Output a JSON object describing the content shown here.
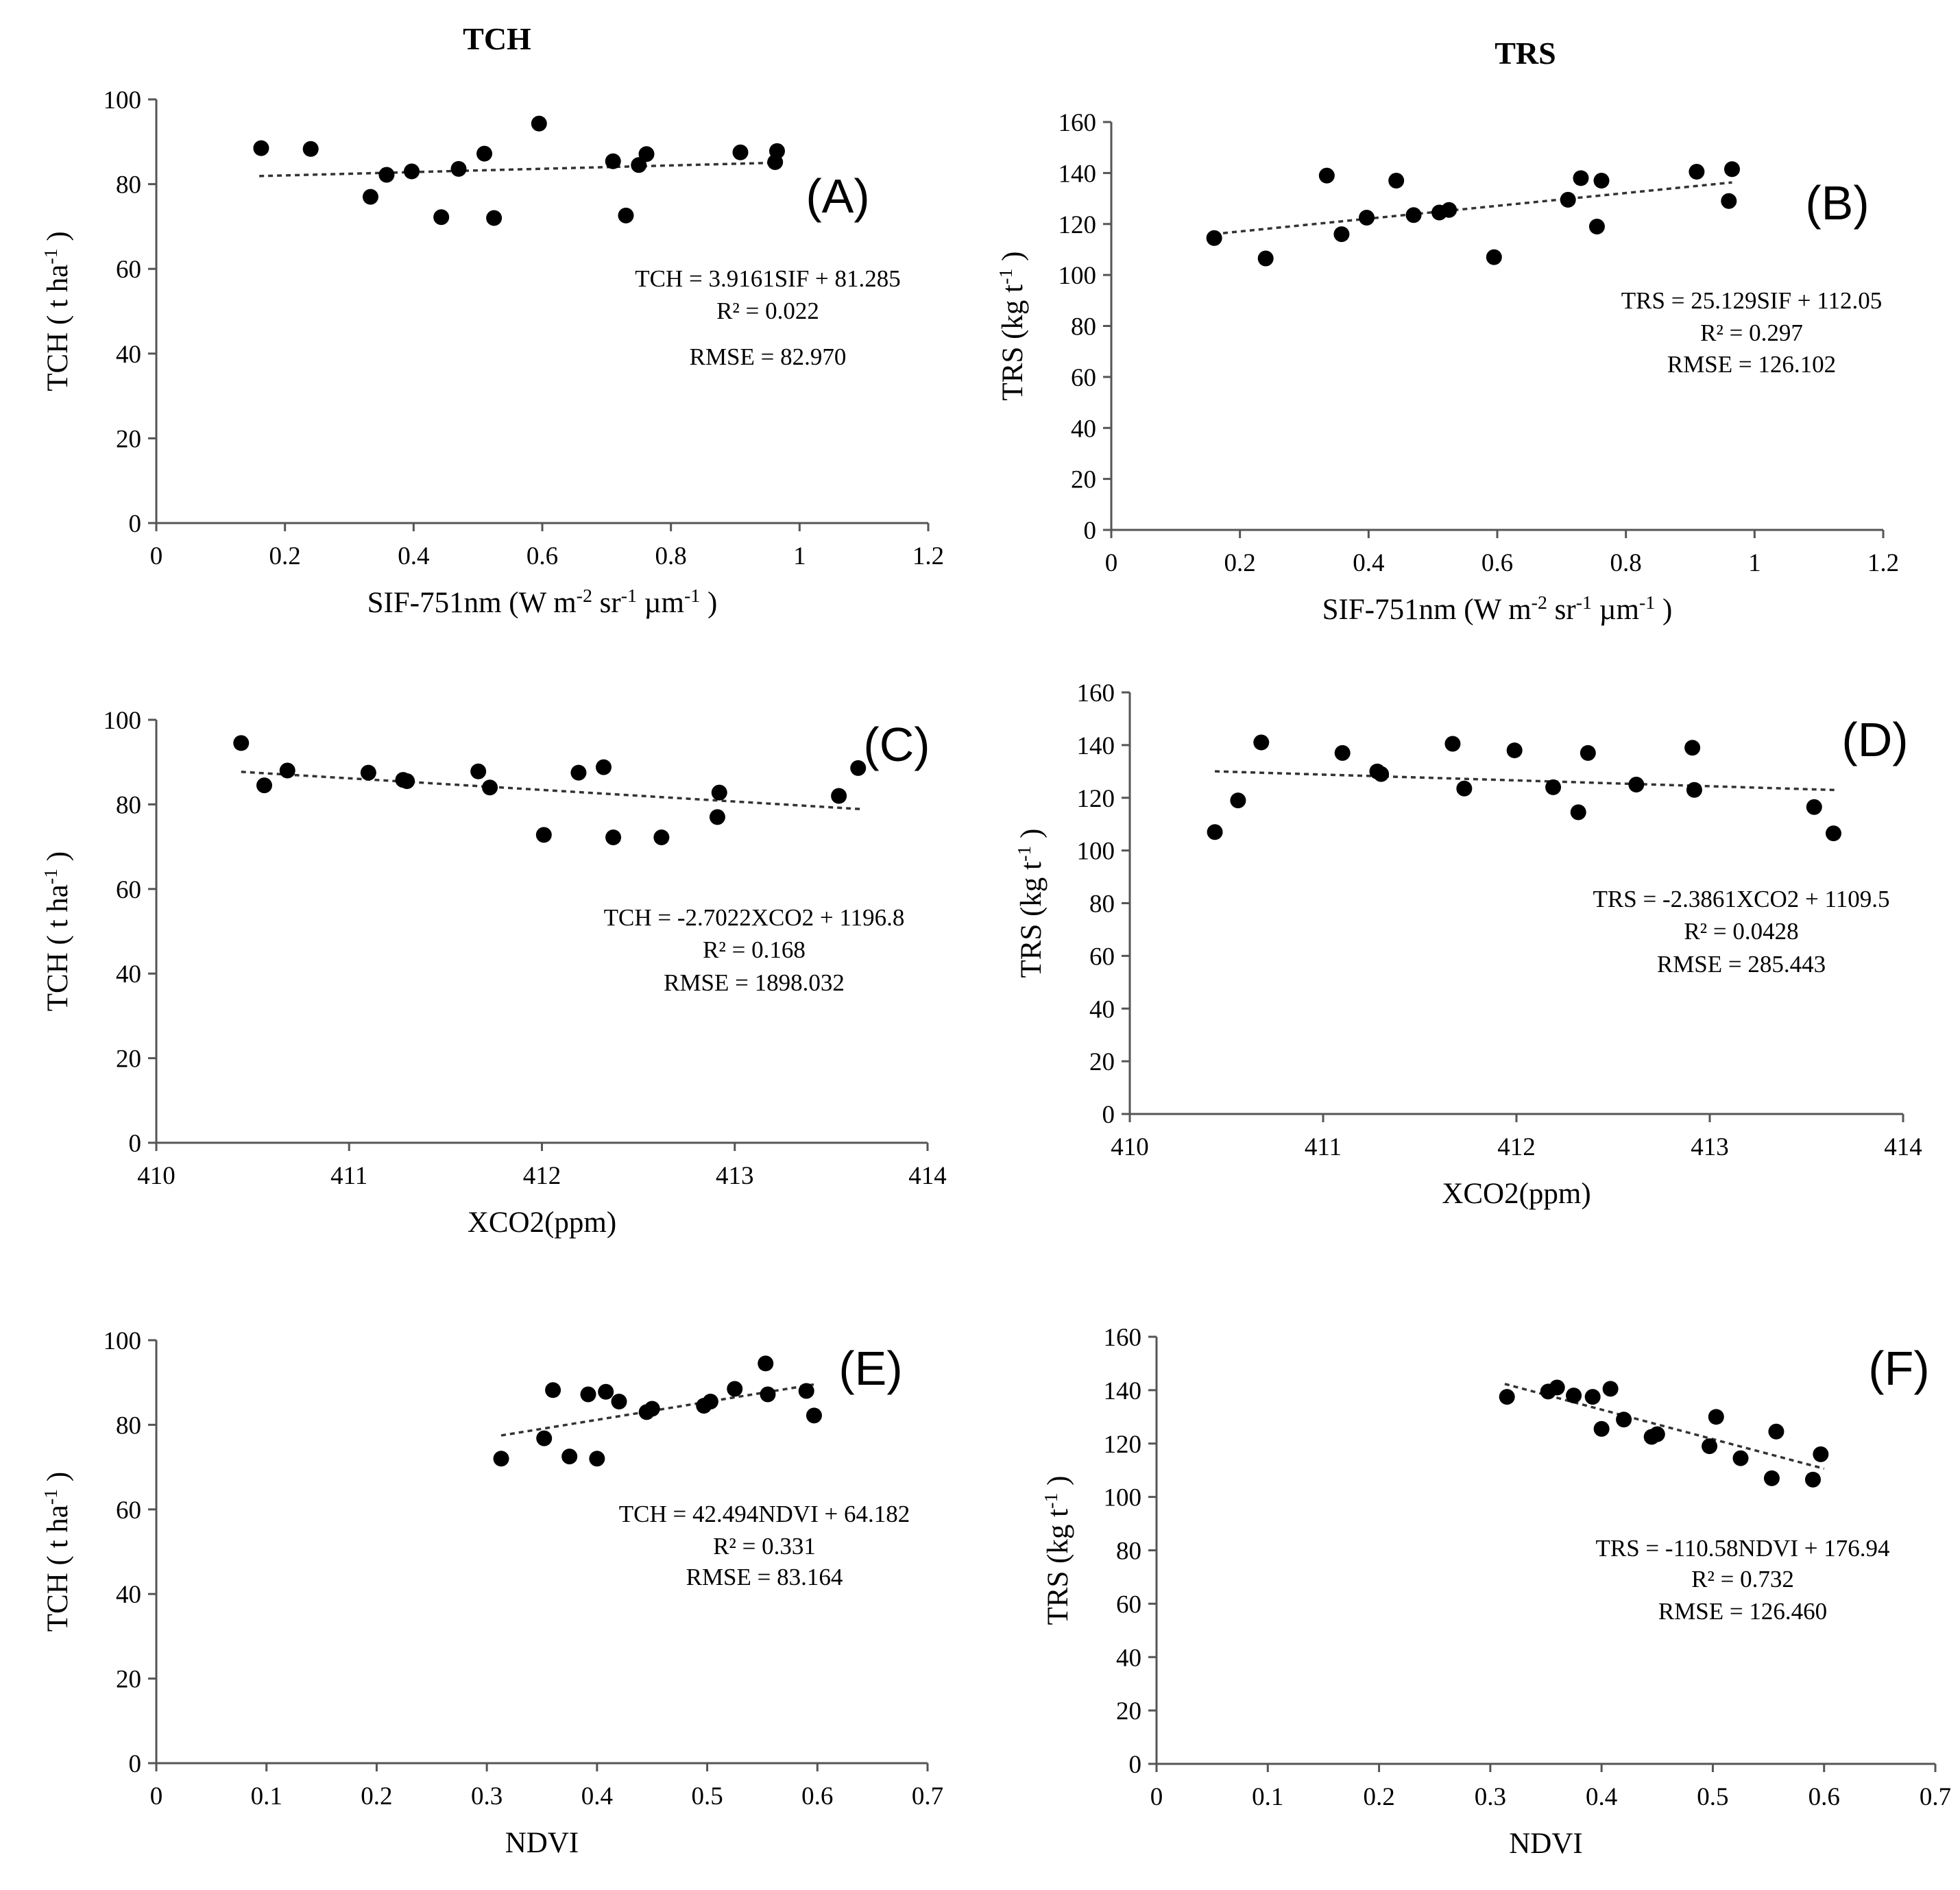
{
  "column_titles": [
    "TCH",
    "TRS"
  ],
  "chart_data": [
    {
      "type": "scatter",
      "panel": "(A)",
      "xlabel": "SIF-751nm (W m-2 sr-1 µm-1 )",
      "ylabel": "TCH ( t ha-1 )",
      "xlim": [
        0,
        1.2
      ],
      "xticks": [
        0,
        0.2,
        0.4,
        0.6,
        0.8,
        1,
        1.2
      ],
      "xtick_labels": [
        "0",
        "0.2",
        "0.4",
        "0.6",
        "0.8",
        "1",
        "1.2"
      ],
      "ylim": [
        0,
        100
      ],
      "yticks": [
        0,
        20,
        40,
        60,
        80,
        100
      ],
      "ytick_labels": [
        "0",
        "20",
        "40",
        "60",
        "80",
        "100"
      ],
      "x": [
        0.163,
        0.24,
        0.333,
        0.358,
        0.397,
        0.443,
        0.47,
        0.51,
        0.525,
        0.595,
        0.71,
        0.73,
        0.75,
        0.762,
        0.908,
        0.962,
        0.965
      ],
      "y": [
        88.5,
        88.3,
        77.0,
        82.2,
        83.0,
        72.2,
        83.6,
        87.2,
        72.0,
        94.3,
        85.4,
        72.6,
        84.5,
        87.1,
        87.5,
        85.2,
        87.8
      ],
      "trendline": {
        "x": [
          0.16,
          0.965
        ],
        "y": [
          81.9,
          85.06
        ]
      },
      "annotations": [
        "TCH = 3.9161SIF + 81.285",
        "R² = 0.022",
        "RMSE = 82.970"
      ]
    },
    {
      "type": "scatter",
      "panel": "(B)",
      "xlabel": "SIF-751nm (W m-2 sr-1 µm-1 )",
      "ylabel": "TRS (kg t-1 )",
      "xlim": [
        0,
        1.2
      ],
      "xticks": [
        0,
        0.2,
        0.4,
        0.6,
        0.8,
        1,
        1.2
      ],
      "xtick_labels": [
        "0",
        "0.2",
        "0.4",
        "0.6",
        "0.8",
        "1",
        "1.2"
      ],
      "ylim": [
        0,
        160
      ],
      "yticks": [
        0,
        20,
        40,
        60,
        80,
        100,
        120,
        140,
        160
      ],
      "ytick_labels": [
        "0",
        "20",
        "40",
        "60",
        "80",
        "100",
        "120",
        "140",
        "160"
      ],
      "x": [
        0.16,
        0.24,
        0.335,
        0.358,
        0.397,
        0.443,
        0.47,
        0.51,
        0.525,
        0.595,
        0.71,
        0.73,
        0.755,
        0.762,
        0.91,
        0.96,
        0.965
      ],
      "y": [
        114.5,
        106.5,
        139.0,
        116.0,
        122.5,
        137.0,
        123.5,
        124.5,
        125.5,
        107.0,
        129.5,
        138.0,
        119.0,
        137.0,
        140.5,
        129.0,
        141.5
      ],
      "trendline": {
        "x": [
          0.16,
          0.965
        ],
        "y": [
          116.07,
          136.3
        ]
      },
      "annotations": [
        "TRS = 25.129SIF + 112.05",
        "R² = 0.297",
        "RMSE = 126.102"
      ]
    },
    {
      "type": "scatter",
      "panel": "(C)",
      "xlabel": "XCO2(ppm)",
      "ylabel": "TCH ( t ha-1 )",
      "xlim": [
        410,
        414
      ],
      "xticks": [
        410,
        411,
        412,
        413,
        414
      ],
      "xtick_labels": [
        "410",
        "411",
        "412",
        "413",
        "414"
      ],
      "ylim": [
        0,
        100
      ],
      "yticks": [
        0,
        20,
        40,
        60,
        80,
        100
      ],
      "ytick_labels": [
        "0",
        "20",
        "40",
        "60",
        "80",
        "100"
      ],
      "x": [
        410.44,
        410.56,
        410.68,
        411.1,
        411.28,
        411.3,
        411.67,
        411.73,
        412.01,
        412.19,
        412.32,
        412.37,
        412.62,
        412.91,
        412.92,
        413.54,
        413.64
      ],
      "y": [
        94.5,
        84.5,
        88.0,
        87.5,
        85.8,
        85.5,
        87.8,
        84.0,
        72.8,
        87.5,
        88.8,
        72.2,
        72.2,
        77.0,
        82.8,
        82.0,
        88.6
      ],
      "trendline": {
        "x": [
          410.44,
          413.65
        ],
        "y": [
          87.7,
          78.9
        ]
      },
      "annotations": [
        "TCH = -2.7022XCO2 + 1196.8",
        "R² = 0.168",
        "RMSE = 1898.032"
      ]
    },
    {
      "type": "scatter",
      "panel": "(D)",
      "xlabel": "XCO2(ppm)",
      "ylabel": "TRS (kg t-1 )",
      "xlim": [
        410,
        414
      ],
      "xticks": [
        410,
        411,
        412,
        413,
        414
      ],
      "xtick_labels": [
        "410",
        "411",
        "412",
        "413",
        "414"
      ],
      "ylim": [
        0,
        160
      ],
      "yticks": [
        0,
        20,
        40,
        60,
        80,
        100,
        120,
        140,
        160
      ],
      "ytick_labels": [
        "0",
        "20",
        "40",
        "60",
        "80",
        "100",
        "120",
        "140",
        "160"
      ],
      "x": [
        410.44,
        410.56,
        410.68,
        411.1,
        411.28,
        411.3,
        411.67,
        411.73,
        411.99,
        412.19,
        412.32,
        412.37,
        412.62,
        412.91,
        412.92,
        413.54,
        413.64
      ],
      "y": [
        107.0,
        119.0,
        141.0,
        137.0,
        130.0,
        129.0,
        140.5,
        123.5,
        138.0,
        124.0,
        114.5,
        137.0,
        125.0,
        139.0,
        123.0,
        116.5,
        106.5
      ],
      "trendline": {
        "x": [
          410.44,
          413.65
        ],
        "y": [
          130.04,
          122.95
        ]
      },
      "annotations": [
        "TRS = -2.3861XCO2 + 1109.5",
        "R² = 0.0428",
        "RMSE = 285.443"
      ]
    },
    {
      "type": "scatter",
      "panel": "(E)",
      "xlabel": "NDVI",
      "ylabel": "TCH ( t ha-1 )",
      "xlim": [
        0,
        0.7
      ],
      "xticks": [
        0,
        0.1,
        0.2,
        0.3,
        0.4,
        0.5,
        0.6,
        0.7
      ],
      "xtick_labels": [
        "0",
        "0.1",
        "0.2",
        "0.3",
        "0.4",
        "0.5",
        "0.6",
        "0.7"
      ],
      "ylim": [
        0,
        100
      ],
      "yticks": [
        0,
        20,
        40,
        60,
        80,
        100
      ],
      "ytick_labels": [
        "0",
        "20",
        "40",
        "60",
        "80",
        "100"
      ],
      "x": [
        0.313,
        0.352,
        0.36,
        0.375,
        0.392,
        0.4,
        0.408,
        0.42,
        0.445,
        0.45,
        0.497,
        0.503,
        0.525,
        0.553,
        0.555,
        0.59,
        0.597
      ],
      "y": [
        72.0,
        76.8,
        88.2,
        72.5,
        87.2,
        72.0,
        87.8,
        85.5,
        83.0,
        83.8,
        84.5,
        85.5,
        88.5,
        94.5,
        87.2,
        88.0,
        82.2
      ],
      "trendline": {
        "x": [
          0.313,
          0.598
        ],
        "y": [
          77.48,
          89.59
        ]
      },
      "annotations": [
        "TCH = 42.494NDVI + 64.182",
        "R² = 0.331",
        "RMSE = 83.164"
      ]
    },
    {
      "type": "scatter",
      "panel": "(F)",
      "xlabel": "NDVI",
      "ylabel": "TRS (kg t-1 )",
      "xlim": [
        0,
        0.7
      ],
      "xticks": [
        0,
        0.1,
        0.2,
        0.3,
        0.4,
        0.5,
        0.6,
        0.7
      ],
      "xtick_labels": [
        "0",
        "0.1",
        "0.2",
        "0.3",
        "0.4",
        "0.5",
        "0.6",
        "0.7"
      ],
      "ylim": [
        0,
        160
      ],
      "yticks": [
        0,
        20,
        40,
        60,
        80,
        100,
        120,
        140,
        160
      ],
      "ytick_labels": [
        "0",
        "20",
        "40",
        "60",
        "80",
        "100",
        "120",
        "140",
        "160"
      ],
      "x": [
        0.315,
        0.352,
        0.36,
        0.375,
        0.392,
        0.4,
        0.408,
        0.42,
        0.445,
        0.45,
        0.497,
        0.503,
        0.525,
        0.553,
        0.557,
        0.59,
        0.597
      ],
      "y": [
        137.5,
        139.5,
        141.0,
        138.0,
        137.5,
        125.5,
        140.5,
        129.0,
        122.5,
        123.5,
        119.0,
        130.0,
        114.5,
        107.0,
        124.5,
        106.5,
        116.0
      ],
      "trendline": {
        "x": [
          0.313,
          0.6
        ],
        "y": [
          142.33,
          110.59
        ]
      },
      "annotations": [
        "TRS = -110.58NDVI + 176.94",
        "R² = 0.732",
        "RMSE = 126.460"
      ]
    }
  ]
}
